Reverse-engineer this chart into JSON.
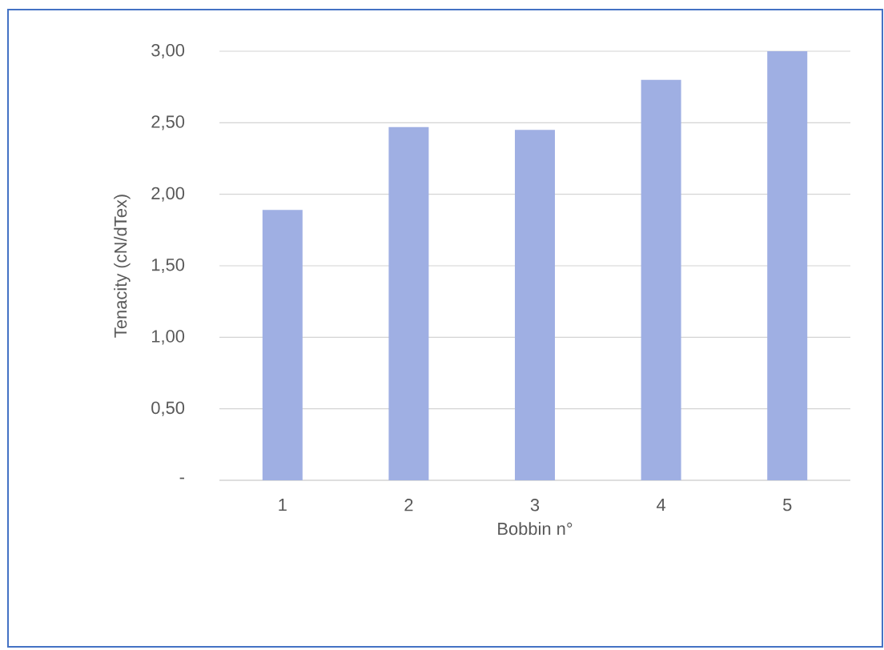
{
  "chart_data": {
    "type": "bar",
    "xlabel": "Bobbin n°",
    "ylabel": "Tenacity (cN/dTex)",
    "categories": [
      "1",
      "2",
      "3",
      "4",
      "5"
    ],
    "values": [
      1.89,
      2.47,
      2.45,
      2.8,
      3.0
    ],
    "color": "#9fafe3",
    "ylim": [
      0,
      3
    ],
    "yticks": [
      {
        "value": 0,
        "label": "-"
      },
      {
        "value": 0.5,
        "label": "0,50"
      },
      {
        "value": 1,
        "label": "1,00"
      },
      {
        "value": 1.5,
        "label": "1,50"
      },
      {
        "value": 2,
        "label": "2,00"
      },
      {
        "value": 2.5,
        "label": "2,50"
      },
      {
        "value": 3,
        "label": "3,00"
      }
    ],
    "grid": "y"
  }
}
